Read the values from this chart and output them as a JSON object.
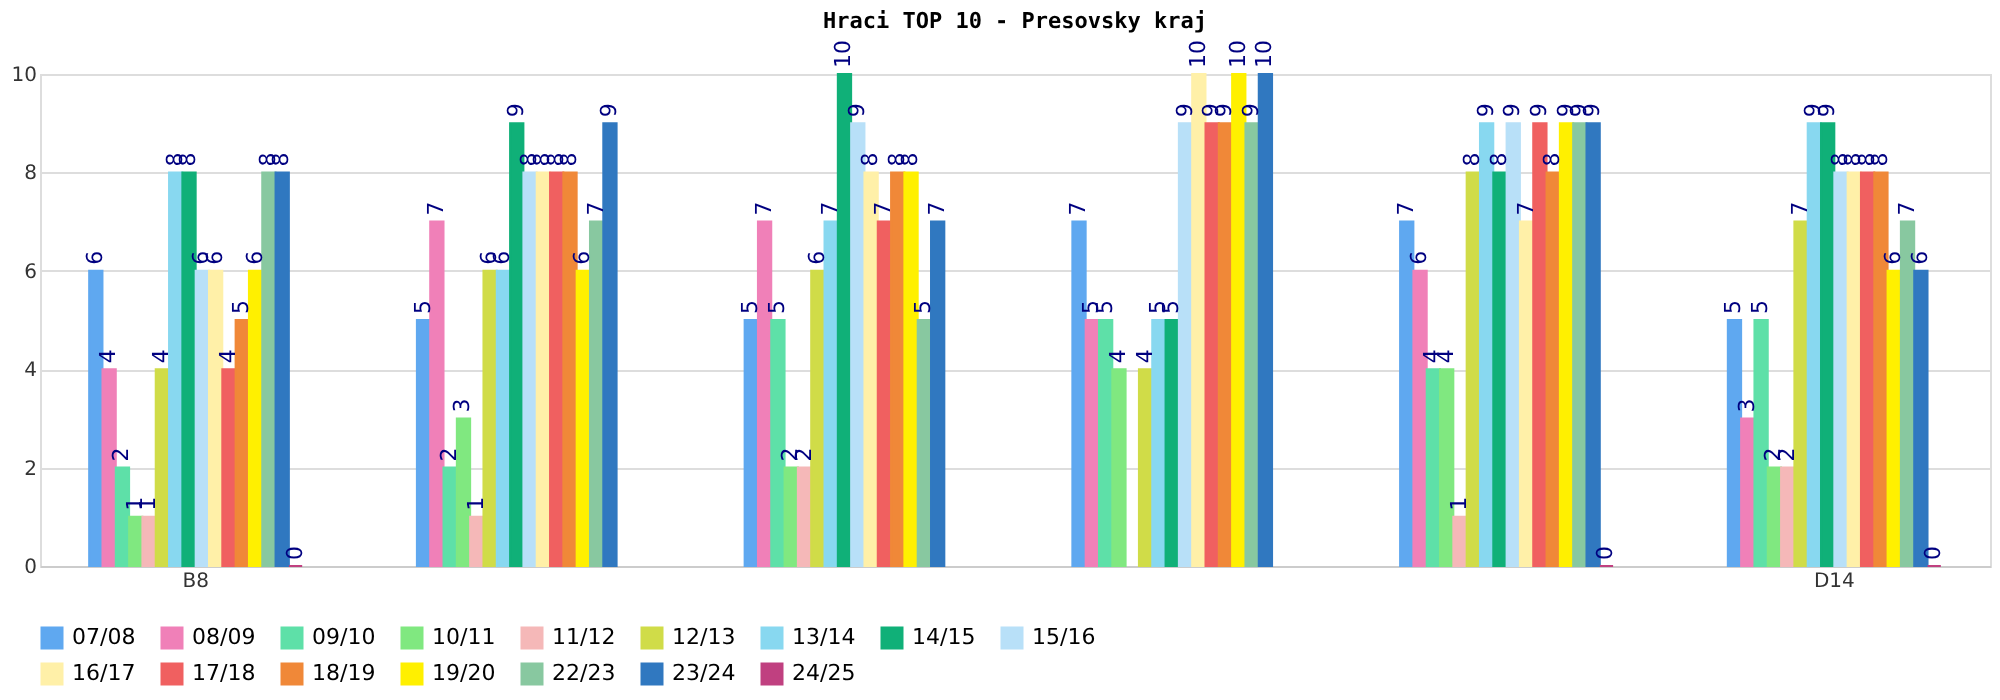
{
  "chart_data": {
    "type": "bar",
    "title": "Hraci TOP 10 - Presovsky kraj",
    "categories": [
      "B8",
      null,
      null,
      null,
      null,
      "D14"
    ],
    "series": [
      {
        "name": "07/08",
        "color": "#5fa8f0",
        "values": [
          6,
          5,
          5,
          7,
          7,
          5
        ]
      },
      {
        "name": "08/09",
        "color": "#f080b8",
        "values": [
          4,
          7,
          7,
          5,
          6,
          3
        ]
      },
      {
        "name": "09/10",
        "color": "#5ee0a8",
        "values": [
          2,
          2,
          5,
          5,
          4,
          5
        ]
      },
      {
        "name": "10/11",
        "color": "#80e880",
        "values": [
          1,
          3,
          2,
          4,
          4,
          2
        ]
      },
      {
        "name": "11/12",
        "color": "#f5b8b8",
        "values": [
          1,
          1,
          2,
          null,
          1,
          2
        ]
      },
      {
        "name": "12/13",
        "color": "#d0dc48",
        "values": [
          4,
          6,
          6,
          4,
          8,
          7
        ]
      },
      {
        "name": "13/14",
        "color": "#88d8f0",
        "values": [
          8,
          6,
          7,
          5,
          9,
          9
        ]
      },
      {
        "name": "14/15",
        "color": "#10b078",
        "values": [
          8,
          9,
          10,
          5,
          8,
          9
        ]
      },
      {
        "name": "15/16",
        "color": "#b8e0f8",
        "values": [
          6,
          8,
          9,
          9,
          9,
          8
        ]
      },
      {
        "name": "16/17",
        "color": "#fff0a8",
        "values": [
          6,
          8,
          8,
          10,
          7,
          8
        ]
      },
      {
        "name": "17/18",
        "color": "#f06060",
        "values": [
          4,
          8,
          7,
          9,
          9,
          8
        ]
      },
      {
        "name": "18/19",
        "color": "#f08838",
        "values": [
          5,
          8,
          8,
          9,
          8,
          8
        ]
      },
      {
        "name": "19/20",
        "color": "#fff000",
        "values": [
          6,
          6,
          8,
          10,
          9,
          6
        ]
      },
      {
        "name": "22/23",
        "color": "#88c8a0",
        "values": [
          8,
          7,
          5,
          9,
          9,
          7
        ]
      },
      {
        "name": "23/24",
        "color": "#3078c0",
        "values": [
          8,
          9,
          7,
          10,
          9,
          6
        ]
      },
      {
        "name": "24/25",
        "color": "#c04080",
        "values": [
          0,
          null,
          null,
          null,
          0,
          0
        ]
      }
    ],
    "ylim": [
      0,
      10
    ],
    "yticks": [
      0,
      2,
      4,
      6,
      8,
      10
    ],
    "grid": true,
    "legend": "bottom",
    "data_labels": true
  }
}
